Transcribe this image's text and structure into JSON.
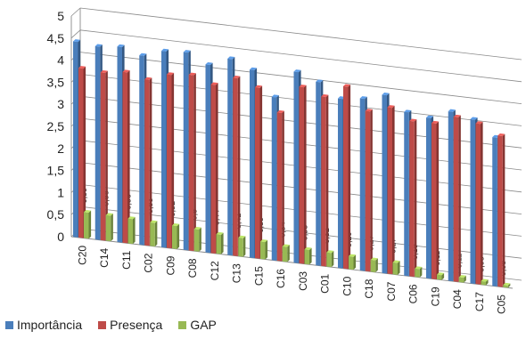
{
  "chart_data": {
    "type": "bar",
    "style": "3d-clustered-column",
    "title": "",
    "xlabel": "",
    "ylabel": "",
    "ylim": [
      0,
      5
    ],
    "y_ticks": [
      "0",
      "0,5",
      "1",
      "1,5",
      "2",
      "2,5",
      "3",
      "3,5",
      "4",
      "4,5",
      "5"
    ],
    "grid": true,
    "legend_position": "bottom-left",
    "categories": [
      "C20",
      "C14",
      "C11",
      "C02",
      "C09",
      "C08",
      "C12",
      "C13",
      "C15",
      "C16",
      "C03",
      "C01",
      "C10",
      "C18",
      "C07",
      "C06",
      "C19",
      "C04",
      "C17",
      "C05"
    ],
    "series": [
      {
        "name": "Importância",
        "color": "#4a7ebb",
        "values": [
          4.43,
          4.38,
          4.43,
          4.29,
          4.45,
          4.48,
          4.26,
          4.45,
          4.26,
          3.7,
          4.33,
          4.16,
          3.84,
          3.9,
          4.04,
          3.71,
          3.64,
          3.84,
          3.72,
          3.37
        ]
      },
      {
        "name": "Presença",
        "color": "#be4b48",
        "values": [
          3.84,
          3.8,
          3.87,
          3.76,
          3.93,
          3.98,
          3.82,
          4.03,
          3.87,
          3.36,
          4.0,
          3.84,
          4.13,
          3.63,
          3.77,
          3.52,
          3.53,
          3.73,
          3.64,
          3.42
        ]
      },
      {
        "name": "GAP",
        "color": "#98b954",
        "values": [
          0.59,
          0.58,
          0.56,
          0.53,
          0.52,
          0.5,
          0.44,
          0.42,
          0.39,
          0.34,
          0.33,
          0.32,
          0.29,
          0.27,
          0.27,
          0.19,
          0.11,
          0.11,
          0.08,
          0.05
        ],
        "labels": [
          "0,59",
          "0,58",
          "0,56",
          "0,53",
          "0,52",
          "0,5",
          "0,44",
          "0,42",
          "0,39",
          "0,34",
          "0,33",
          "0,32",
          "0,29",
          "0,27",
          "0,27",
          "0,19",
          "0,11",
          "0,11",
          "0,08",
          "0,05"
        ]
      }
    ]
  }
}
